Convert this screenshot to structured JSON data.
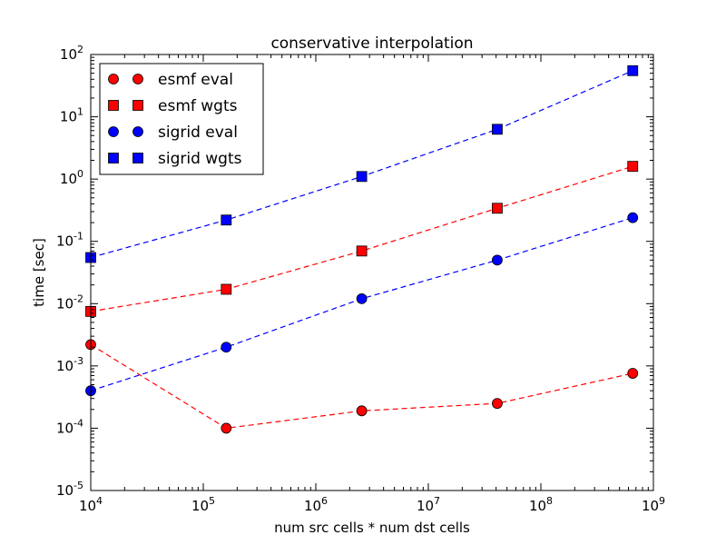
{
  "chart_data": {
    "type": "scatter",
    "title": "conservative interpolation",
    "xlabel": "num src cells * num dst cells",
    "ylabel": "time [sec]",
    "xscale": "log",
    "yscale": "log",
    "xlim": [
      10000,
      1000000000
    ],
    "ylim": [
      1e-05,
      100
    ],
    "grid": false,
    "legend_position": "upper-left",
    "x_ticks": [
      {
        "value": 10000,
        "base": "10",
        "exp": "4"
      },
      {
        "value": 100000,
        "base": "10",
        "exp": "5"
      },
      {
        "value": 1000000,
        "base": "10",
        "exp": "6"
      },
      {
        "value": 10000000,
        "base": "10",
        "exp": "7"
      },
      {
        "value": 100000000,
        "base": "10",
        "exp": "8"
      },
      {
        "value": 1000000000,
        "base": "10",
        "exp": "9"
      }
    ],
    "y_ticks": [
      {
        "value": 1e-05,
        "base": "10",
        "exp": "-5"
      },
      {
        "value": 0.0001,
        "base": "10",
        "exp": "-4"
      },
      {
        "value": 0.001,
        "base": "10",
        "exp": "-3"
      },
      {
        "value": 0.01,
        "base": "10",
        "exp": "-2"
      },
      {
        "value": 0.1,
        "base": "10",
        "exp": "-1"
      },
      {
        "value": 1,
        "base": "10",
        "exp": "0"
      },
      {
        "value": 10,
        "base": "10",
        "exp": "1"
      },
      {
        "value": 100,
        "base": "10",
        "exp": "2"
      }
    ],
    "x": [
      10000,
      160000,
      2560000,
      40960000,
      655360000
    ],
    "series": [
      {
        "name": "esmf eval",
        "color": "#ff0000",
        "marker": "circle",
        "values": [
          0.0022,
          0.0001,
          0.00019,
          0.00025,
          0.00076
        ]
      },
      {
        "name": "esmf wgts",
        "color": "#ff0000",
        "marker": "square",
        "values": [
          0.0075,
          0.017,
          0.07,
          0.34,
          1.6
        ]
      },
      {
        "name": "sigrid eval",
        "color": "#0000ff",
        "marker": "circle",
        "values": [
          0.0004,
          0.002,
          0.012,
          0.05,
          0.24
        ]
      },
      {
        "name": "sigrid wgts",
        "color": "#0000ff",
        "marker": "square",
        "values": [
          0.055,
          0.22,
          1.1,
          6.3,
          55
        ]
      }
    ]
  }
}
